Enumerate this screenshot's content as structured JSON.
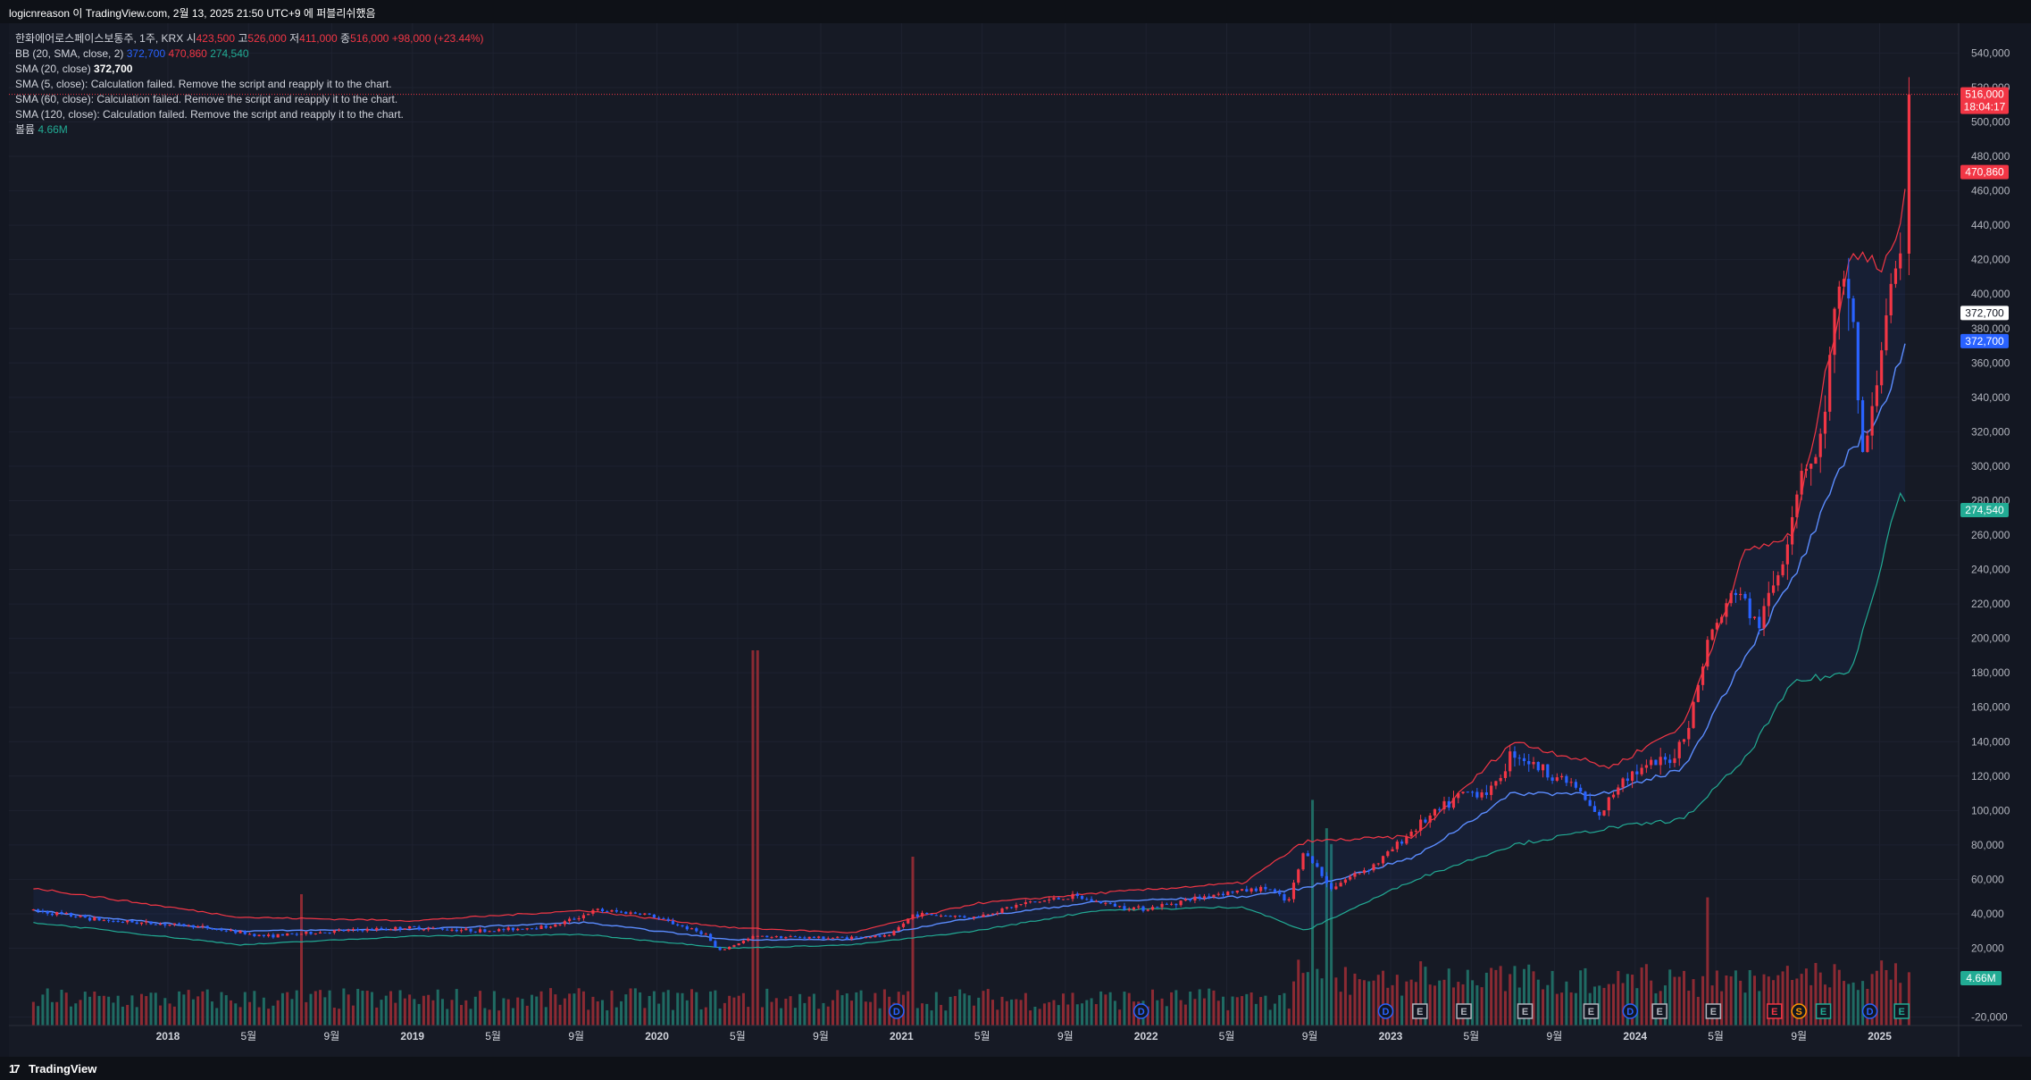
{
  "header": {
    "published_text": "logicnreason 이 TradingView.com, 2월 13, 2025 21:50 UTC+9 에 퍼블리쉬했음"
  },
  "legend": {
    "symbol": "한화에어로스페이스보통주, 1주, KRX",
    "open_label": "시",
    "open": "423,500",
    "high_label": "고",
    "high": "526,000",
    "low_label": "저",
    "low": "411,000",
    "close_label": "종",
    "close": "516,000",
    "change": "+98,000 (+23.44%)",
    "bb_label": "BB (20, SMA, close, 2)",
    "bb_basis": "372,700",
    "bb_upper": "470,860",
    "bb_lower": "274,540",
    "sma20_label": "SMA (20, close)",
    "sma20_value": "372,700",
    "sma5_label": "SMA (5, close): Calculation failed. Remove the script and reapply it to the chart.",
    "sma60_label": "SMA (60, close): Calculation failed. Remove the script and reapply it to the chart.",
    "sma120_label": "SMA (120, close): Calculation failed. Remove the script and reapply it to the chart.",
    "volume_label": "볼륨",
    "volume_value": "4.66M"
  },
  "price_tags": {
    "last_price": "516,000",
    "countdown": "18:04:17",
    "bb_upper": "470,860",
    "sma20": "372,700",
    "bb_basis": "372,700",
    "bb_lower": "274,540",
    "volume": "4.66M"
  },
  "footer": {
    "brand": "TradingView"
  },
  "colors": {
    "up": "#f23645",
    "down": "#2962ff",
    "bb_upper": "#f23645",
    "bb_lower": "#22ab94",
    "basis": "#5b8cff",
    "volume_up": "#8c2a33",
    "volume_down": "#1f6b63",
    "background": "#161a25"
  },
  "chart_data": {
    "type": "candlestick",
    "title": "한화에어로스페이스보통주, 1주, KRX",
    "y_axis": {
      "ticks": [
        -20000,
        20000,
        40000,
        60000,
        80000,
        100000,
        120000,
        140000,
        160000,
        180000,
        200000,
        220000,
        240000,
        260000,
        280000,
        300000,
        320000,
        340000,
        360000,
        380000,
        400000,
        420000,
        440000,
        460000,
        480000,
        500000,
        520000,
        540000
      ],
      "tick_labels": [
        "-20,000",
        "20,000",
        "40,000",
        "60,000",
        "80,000",
        "100,000",
        "120,000",
        "140,000",
        "160,000",
        "180,000",
        "200,000",
        "220,000",
        "240,000",
        "260,000",
        "280,000",
        "300,000",
        "320,000",
        "340,000",
        "360,000",
        "380,000",
        "400,000",
        "420,000",
        "440,000",
        "460,000",
        "480,000",
        "500,000",
        "520,000",
        "540,000"
      ],
      "range": [
        -28000,
        548000
      ]
    },
    "x_axis": {
      "range": [
        "2017-06",
        "2025-03"
      ],
      "ticks": [
        {
          "date": 2018.0,
          "label": "2018",
          "bold": true
        },
        {
          "date": 2018.33,
          "label": "5월"
        },
        {
          "date": 2018.67,
          "label": "9월"
        },
        {
          "date": 2019.0,
          "label": "2019",
          "bold": true
        },
        {
          "date": 2019.33,
          "label": "5월"
        },
        {
          "date": 2019.67,
          "label": "9월"
        },
        {
          "date": 2020.0,
          "label": "2020",
          "bold": true
        },
        {
          "date": 2020.33,
          "label": "5월"
        },
        {
          "date": 2020.67,
          "label": "9월"
        },
        {
          "date": 2021.0,
          "label": "2021",
          "bold": true
        },
        {
          "date": 2021.33,
          "label": "5월"
        },
        {
          "date": 2021.67,
          "label": "9월"
        },
        {
          "date": 2022.0,
          "label": "2022",
          "bold": true
        },
        {
          "date": 2022.33,
          "label": "5월"
        },
        {
          "date": 2022.67,
          "label": "9월"
        },
        {
          "date": 2023.0,
          "label": "2023",
          "bold": true
        },
        {
          "date": 2023.33,
          "label": "5월"
        },
        {
          "date": 2023.67,
          "label": "9월"
        },
        {
          "date": 2024.0,
          "label": "2024",
          "bold": true
        },
        {
          "date": 2024.33,
          "label": "5월"
        },
        {
          "date": 2024.67,
          "label": "9월"
        },
        {
          "date": 2025.0,
          "label": "2025",
          "bold": true
        }
      ]
    },
    "price_anchors": [
      {
        "date": 2017.45,
        "close": 42000
      },
      {
        "date": 2017.75,
        "close": 36000
      },
      {
        "date": 2018.1,
        "close": 33000
      },
      {
        "date": 2018.4,
        "close": 27000
      },
      {
        "date": 2018.7,
        "close": 30000
      },
      {
        "date": 2019.0,
        "close": 32000
      },
      {
        "date": 2019.3,
        "close": 30000
      },
      {
        "date": 2019.58,
        "close": 33000
      },
      {
        "date": 2019.75,
        "close": 42000
      },
      {
        "date": 2019.95,
        "close": 40000
      },
      {
        "date": 2020.2,
        "close": 28000
      },
      {
        "date": 2020.25,
        "close": 18000
      },
      {
        "date": 2020.4,
        "close": 27000
      },
      {
        "date": 2020.7,
        "close": 26000
      },
      {
        "date": 2020.95,
        "close": 27000
      },
      {
        "date": 2021.05,
        "close": 40000
      },
      {
        "date": 2021.3,
        "close": 38000
      },
      {
        "date": 2021.5,
        "close": 46000
      },
      {
        "date": 2021.7,
        "close": 50000
      },
      {
        "date": 2021.9,
        "close": 44000
      },
      {
        "date": 2022.0,
        "close": 43000
      },
      {
        "date": 2022.3,
        "close": 52000
      },
      {
        "date": 2022.5,
        "close": 55000
      },
      {
        "date": 2022.58,
        "close": 46000
      },
      {
        "date": 2022.65,
        "close": 78000
      },
      {
        "date": 2022.75,
        "close": 55000
      },
      {
        "date": 2022.95,
        "close": 70000
      },
      {
        "date": 2023.1,
        "close": 90000
      },
      {
        "date": 2023.3,
        "close": 110000
      },
      {
        "date": 2023.42,
        "close": 112000
      },
      {
        "date": 2023.5,
        "close": 135000
      },
      {
        "date": 2023.6,
        "close": 125000
      },
      {
        "date": 2023.75,
        "close": 115000
      },
      {
        "date": 2023.85,
        "close": 95000
      },
      {
        "date": 2023.95,
        "close": 120000
      },
      {
        "date": 2024.15,
        "close": 130000
      },
      {
        "date": 2024.22,
        "close": 150000
      },
      {
        "date": 2024.3,
        "close": 200000
      },
      {
        "date": 2024.42,
        "close": 230000
      },
      {
        "date": 2024.5,
        "close": 205000
      },
      {
        "date": 2024.6,
        "close": 245000
      },
      {
        "date": 2024.68,
        "close": 300000
      },
      {
        "date": 2024.75,
        "close": 305000
      },
      {
        "date": 2024.82,
        "close": 390000
      },
      {
        "date": 2024.88,
        "close": 405000
      },
      {
        "date": 2024.93,
        "close": 305000
      },
      {
        "date": 2024.97,
        "close": 330000
      },
      {
        "date": 2025.03,
        "close": 395000
      },
      {
        "date": 2025.08,
        "close": 410000
      },
      {
        "date": 2025.1,
        "close": 423500
      },
      {
        "date": 2025.12,
        "close": 516000
      }
    ],
    "last_candle": {
      "open": 423500,
      "high": 526000,
      "low": 411000,
      "close": 516000
    },
    "bollinger": {
      "period": 20,
      "stddev": 2,
      "upper_anchors": [
        {
          "date": 2017.45,
          "value": 55000
        },
        {
          "date": 2018.3,
          "value": 38000
        },
        {
          "date": 2019.0,
          "value": 36000
        },
        {
          "date": 2019.7,
          "value": 42000
        },
        {
          "date": 2020.3,
          "value": 32000
        },
        {
          "date": 2020.8,
          "value": 29000
        },
        {
          "date": 2021.3,
          "value": 46000
        },
        {
          "date": 2021.8,
          "value": 52000
        },
        {
          "date": 2022.4,
          "value": 58000
        },
        {
          "date": 2022.65,
          "value": 82000
        },
        {
          "date": 2023.1,
          "value": 85000
        },
        {
          "date": 2023.5,
          "value": 140000
        },
        {
          "date": 2023.9,
          "value": 125000
        },
        {
          "date": 2024.2,
          "value": 150000
        },
        {
          "date": 2024.45,
          "value": 250000
        },
        {
          "date": 2024.65,
          "value": 260000
        },
        {
          "date": 2024.88,
          "value": 425000
        },
        {
          "date": 2025.0,
          "value": 415000
        },
        {
          "date": 2025.08,
          "value": 440000
        },
        {
          "date": 2025.12,
          "value": 470860
        }
      ],
      "basis_anchors": [
        {
          "date": 2017.45,
          "value": 42000
        },
        {
          "date": 2018.3,
          "value": 30000
        },
        {
          "date": 2019.0,
          "value": 31000
        },
        {
          "date": 2019.7,
          "value": 35000
        },
        {
          "date": 2020.3,
          "value": 25000
        },
        {
          "date": 2020.8,
          "value": 25000
        },
        {
          "date": 2021.3,
          "value": 38000
        },
        {
          "date": 2021.8,
          "value": 47000
        },
        {
          "date": 2022.4,
          "value": 50000
        },
        {
          "date": 2022.65,
          "value": 55000
        },
        {
          "date": 2023.1,
          "value": 73000
        },
        {
          "date": 2023.5,
          "value": 110000
        },
        {
          "date": 2023.9,
          "value": 110000
        },
        {
          "date": 2024.2,
          "value": 125000
        },
        {
          "date": 2024.45,
          "value": 190000
        },
        {
          "date": 2024.65,
          "value": 235000
        },
        {
          "date": 2024.88,
          "value": 310000
        },
        {
          "date": 2025.0,
          "value": 330000
        },
        {
          "date": 2025.12,
          "value": 372700
        }
      ],
      "lower_anchors": [
        {
          "date": 2017.45,
          "value": 35000
        },
        {
          "date": 2018.3,
          "value": 22000
        },
        {
          "date": 2019.0,
          "value": 27000
        },
        {
          "date": 2019.7,
          "value": 28000
        },
        {
          "date": 2020.3,
          "value": 20000
        },
        {
          "date": 2020.8,
          "value": 22000
        },
        {
          "date": 2021.3,
          "value": 30000
        },
        {
          "date": 2021.8,
          "value": 42000
        },
        {
          "date": 2022.4,
          "value": 44000
        },
        {
          "date": 2022.65,
          "value": 30000
        },
        {
          "date": 2023.1,
          "value": 60000
        },
        {
          "date": 2023.5,
          "value": 80000
        },
        {
          "date": 2023.9,
          "value": 90000
        },
        {
          "date": 2024.2,
          "value": 95000
        },
        {
          "date": 2024.45,
          "value": 130000
        },
        {
          "date": 2024.65,
          "value": 175000
        },
        {
          "date": 2024.88,
          "value": 180000
        },
        {
          "date": 2025.0,
          "value": 240000
        },
        {
          "date": 2025.08,
          "value": 285000
        },
        {
          "date": 2025.12,
          "value": 274540
        }
      ]
    },
    "volume": {
      "last": "4.66M",
      "spikes": [
        {
          "date": 2018.55,
          "relative": 0.35
        },
        {
          "date": 2020.4,
          "relative": 1.0
        },
        {
          "date": 2021.05,
          "relative": 0.45
        },
        {
          "date": 2022.68,
          "relative": 0.55
        },
        {
          "date": 2022.75,
          "relative": 0.45
        },
        {
          "date": 2024.3,
          "relative": 0.3
        }
      ]
    },
    "events": [
      {
        "date": 2020.98,
        "type": "D",
        "kind": "dividend"
      },
      {
        "date": 2021.98,
        "type": "D",
        "kind": "dividend"
      },
      {
        "date": 2022.98,
        "type": "D",
        "kind": "dividend"
      },
      {
        "date": 2023.12,
        "type": "E",
        "kind": "earnings"
      },
      {
        "date": 2023.3,
        "type": "E",
        "kind": "earnings"
      },
      {
        "date": 2023.55,
        "type": "E",
        "kind": "earnings"
      },
      {
        "date": 2023.82,
        "type": "E",
        "kind": "earnings"
      },
      {
        "date": 2023.98,
        "type": "D",
        "kind": "dividend"
      },
      {
        "date": 2024.1,
        "type": "E",
        "kind": "earnings"
      },
      {
        "date": 2024.32,
        "type": "E",
        "kind": "earnings"
      },
      {
        "date": 2024.57,
        "type": "E",
        "kind": "earnings-miss"
      },
      {
        "date": 2024.67,
        "type": "S",
        "kind": "split"
      },
      {
        "date": 2024.77,
        "type": "E",
        "kind": "earnings-beat"
      },
      {
        "date": 2024.96,
        "type": "D",
        "kind": "dividend"
      },
      {
        "date": 2025.09,
        "type": "E",
        "kind": "earnings-upcoming"
      }
    ]
  }
}
